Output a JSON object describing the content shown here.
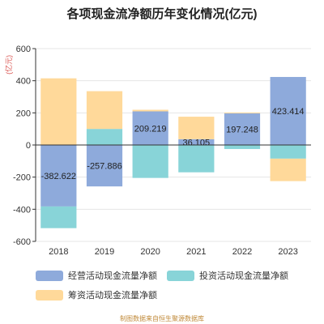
{
  "chart_data": {
    "type": "bar",
    "title": "各项现金流净额历年变化情况(亿元)",
    "ylabel": "(亿元)",
    "ylim": [
      -600,
      600
    ],
    "yticks": [
      600,
      400,
      200,
      0,
      -200,
      -400,
      -600
    ],
    "categories": [
      "2018",
      "2019",
      "2020",
      "2021",
      "2022",
      "2023"
    ],
    "stacked": true,
    "grid": true,
    "legend_position": "bottom",
    "series": [
      {
        "name": "经营活动现金流量净额",
        "color": "#8eaadb",
        "values": [
          -382.622,
          -257.886,
          209.219,
          36.105,
          197.248,
          423.414
        ]
      },
      {
        "name": "投资活动现金流量净额",
        "color": "#88d4d8",
        "values": [
          -135,
          100,
          -205,
          -170,
          -25,
          -85
        ]
      },
      {
        "name": "筹资活动现金流量净额",
        "color": "#ffd99a",
        "values": [
          415,
          235,
          10,
          140,
          5,
          -140
        ]
      }
    ],
    "data_labels": [
      "-382.622",
      "-257.886",
      "209.219",
      "36.105",
      "197.248",
      "423.414"
    ]
  },
  "source_note": "制图数据来自恒生聚源数据库"
}
